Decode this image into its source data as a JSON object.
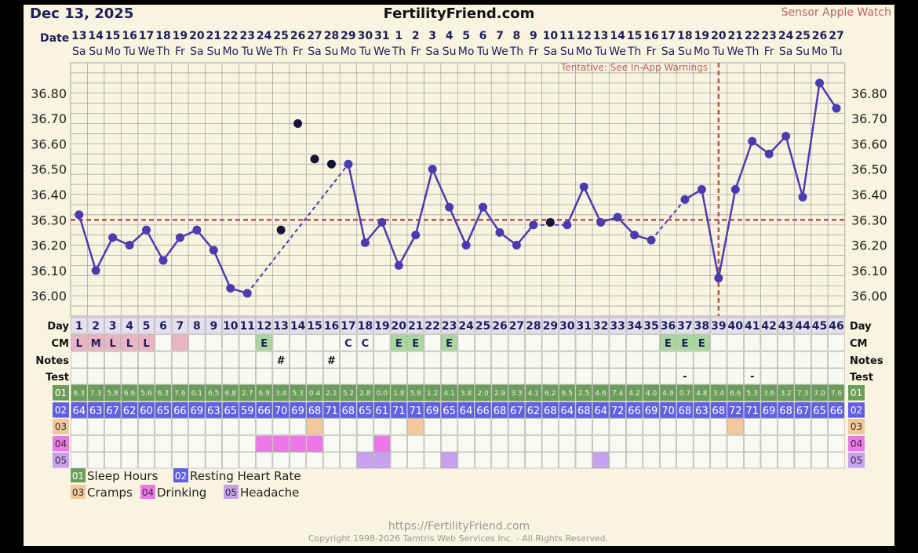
{
  "header": {
    "date": "Dec 13, 2025",
    "site": "FertilityFriend.com",
    "sensor": "Sensor Apple Watch",
    "tentative": "Tentative: See In-App Warnings"
  },
  "labels": {
    "date_row": "Date",
    "day_row": "Day",
    "cm": "CM",
    "notes": "Notes",
    "test": "Test"
  },
  "calendar": {
    "dates": [
      "13",
      "14",
      "15",
      "16",
      "17",
      "18",
      "19",
      "20",
      "21",
      "22",
      "23",
      "24",
      "25",
      "26",
      "27",
      "28",
      "29",
      "30",
      "31",
      "1",
      "2",
      "3",
      "4",
      "5",
      "6",
      "7",
      "8",
      "9",
      "10",
      "11",
      "12",
      "13",
      "14",
      "15",
      "16",
      "17",
      "18",
      "19",
      "20",
      "21",
      "22",
      "23",
      "24",
      "25",
      "26",
      "27"
    ],
    "weekdays": [
      "Sa",
      "Su",
      "Mo",
      "Tu",
      "We",
      "Th",
      "Fr",
      "Sa",
      "Su",
      "Mo",
      "Tu",
      "We",
      "Th",
      "Fr",
      "Sa",
      "Su",
      "Mo",
      "Tu",
      "We",
      "Th",
      "Fr",
      "Sa",
      "Su",
      "Mo",
      "Tu",
      "We",
      "Th",
      "Fr",
      "Sa",
      "Su",
      "Mo",
      "Tu",
      "We",
      "Th",
      "Fr",
      "Sa",
      "Su",
      "Mo",
      "Tu",
      "We",
      "Th",
      "Fr",
      "Sa",
      "Su",
      "Mo",
      "Tu"
    ],
    "cycle_days": [
      "1",
      "2",
      "3",
      "4",
      "5",
      "6",
      "7",
      "8",
      "9",
      "10",
      "11",
      "12",
      "13",
      "14",
      "15",
      "16",
      "17",
      "18",
      "19",
      "20",
      "21",
      "22",
      "23",
      "24",
      "25",
      "26",
      "27",
      "28",
      "29",
      "30",
      "31",
      "32",
      "33",
      "34",
      "35",
      "36",
      "37",
      "38",
      "39",
      "40",
      "41",
      "42",
      "43",
      "44",
      "45",
      "46"
    ]
  },
  "chart_data": {
    "type": "line",
    "ylabel_ticks": [
      "36.00",
      "36.10",
      "36.20",
      "36.30",
      "36.40",
      "36.50",
      "36.60",
      "36.70",
      "36.80"
    ],
    "ylim": [
      35.92,
      36.92
    ],
    "coverline": 36.3,
    "ovulation_day": 39,
    "temps": [
      36.32,
      36.1,
      36.23,
      36.2,
      36.26,
      36.14,
      36.23,
      36.26,
      36.18,
      36.03,
      36.01,
      null,
      36.26,
      36.68,
      36.54,
      36.52,
      36.52,
      36.21,
      36.29,
      36.12,
      36.24,
      36.5,
      36.35,
      36.2,
      36.35,
      36.25,
      36.2,
      36.28,
      36.29,
      36.28,
      36.43,
      36.29,
      36.31,
      36.24,
      36.22,
      null,
      36.38,
      36.42,
      36.07,
      36.42,
      36.61,
      36.56,
      36.63,
      36.39,
      36.84,
      36.74
    ],
    "temp_style": [
      "c",
      "c",
      "c",
      "c",
      "c",
      "c",
      "c",
      "c",
      "c",
      "c",
      "c",
      "n",
      "o",
      "o",
      "o",
      "o",
      "c",
      "c",
      "c",
      "c",
      "c",
      "c",
      "c",
      "c",
      "c",
      "c",
      "c",
      "c",
      "o",
      "c",
      "c",
      "c",
      "c",
      "c",
      "c",
      "n",
      "c",
      "c",
      "c",
      "c",
      "c",
      "c",
      "c",
      "c",
      "c",
      "c"
    ],
    "grid": true
  },
  "rows": {
    "cm": [
      "L",
      "M",
      "L",
      "L",
      "L",
      "",
      "",
      "",
      "",
      "",
      "",
      "E",
      "",
      "",
      "",
      "",
      "C",
      "C",
      "",
      "E",
      "E",
      "",
      "E",
      "",
      "",
      "",
      "",
      "",
      "",
      "",
      "",
      "",
      "",
      "",
      "",
      "E",
      "E",
      "E",
      "",
      "",
      "",
      "",
      "",
      "",
      "",
      ""
    ],
    "cm_colors": [
      "pink",
      "pink",
      "pink",
      "pink",
      "pink",
      "",
      "pink",
      "",
      "",
      "",
      "",
      "green",
      "",
      "",
      "",
      "",
      "",
      "",
      "",
      "green",
      "green",
      "",
      "green",
      "",
      "",
      "",
      "",
      "",
      "",
      "",
      "",
      "",
      "",
      "",
      "",
      "green",
      "green",
      "green",
      "",
      "",
      "",
      "",
      "",
      "",
      "",
      ""
    ],
    "notes": [
      "",
      "",
      "",
      "",
      "",
      "",
      "",
      "",
      "",
      "",
      "",
      "",
      "#",
      "",
      "",
      "#",
      "",
      "",
      "",
      "",
      "",
      "",
      "",
      "",
      "",
      "",
      "",
      "",
      "",
      "",
      "",
      "",
      "",
      "",
      "",
      "",
      "",
      "",
      "",
      "",
      "",
      "",
      "",
      "",
      "",
      ""
    ],
    "test": [
      "",
      "",
      "",
      "",
      "",
      "",
      "",
      "",
      "",
      "",
      "",
      "",
      "",
      "",
      "",
      "",
      "",
      "",
      "",
      "",
      "",
      "",
      "",
      "",
      "",
      "",
      "",
      "",
      "",
      "",
      "",
      "",
      "",
      "",
      "",
      "",
      "-",
      "",
      "",
      "",
      "-",
      "",
      "",
      "",
      "",
      ""
    ]
  },
  "custom": {
    "codes": [
      "01",
      "02",
      "03",
      "04",
      "05"
    ],
    "sleep": [
      "6.3",
      "7.3",
      "5.8",
      "6.6",
      "5.6",
      "6.3",
      "7.6",
      "0.1",
      "6.5",
      "6.8",
      "2.7",
      "6.9",
      "3.4",
      "5.3",
      "0.4",
      "2.1",
      "5.2",
      "2.8",
      "0.0",
      "1.8",
      "5.8",
      "1.2",
      "4.1",
      "3.8",
      "2.0",
      "2.9",
      "3.3",
      "4.1",
      "6.2",
      "6.5",
      "2.5",
      "4.6",
      "7.4",
      "4.2",
      "4.0",
      "4.9",
      "0.7",
      "4.8",
      "3.4",
      "6.6",
      "5.3",
      "3.6",
      "3.2",
      "7.3",
      "7.0",
      "7.6"
    ],
    "rhr": [
      "64",
      "63",
      "67",
      "62",
      "60",
      "65",
      "66",
      "69",
      "63",
      "65",
      "59",
      "66",
      "70",
      "69",
      "68",
      "71",
      "68",
      "65",
      "61",
      "71",
      "71",
      "69",
      "65",
      "64",
      "66",
      "68",
      "67",
      "62",
      "68",
      "64",
      "68",
      "64",
      "72",
      "66",
      "69",
      "70",
      "68",
      "63",
      "68",
      "72",
      "71",
      "69",
      "68",
      "67",
      "65",
      "66"
    ],
    "cramps": [
      15,
      21,
      40
    ],
    "drinking": [
      12,
      13,
      14,
      15,
      19
    ],
    "headache": [
      18,
      19,
      23,
      32
    ]
  },
  "legend": {
    "items": [
      {
        "code": "01",
        "label": "Sleep Hours"
      },
      {
        "code": "02",
        "label": "Resting Heart Rate"
      },
      {
        "code": "03",
        "label": "Cramps"
      },
      {
        "code": "04",
        "label": "Drinking"
      },
      {
        "code": "05",
        "label": "Headache"
      }
    ]
  },
  "footer": {
    "url": "https://FertilityFriend.com",
    "copyright": "Copyright 1998-2026 Tamtris Web Services Inc. - All Rights Reserved."
  },
  "colors": {
    "background": "#f8f4e0",
    "grid": "#a8a8a8",
    "line": "#4a3cb0",
    "coverline": "#c0504d",
    "title_blue": "#1e1e5a",
    "pink": "#eab4c4",
    "green_cm": "#a8d8a0",
    "sleep": "#6b9e5a",
    "rhr": "#6060e0",
    "cramps": "#f4c89a",
    "drinking": "#ec78e8",
    "headache": "#c8a0f0"
  }
}
